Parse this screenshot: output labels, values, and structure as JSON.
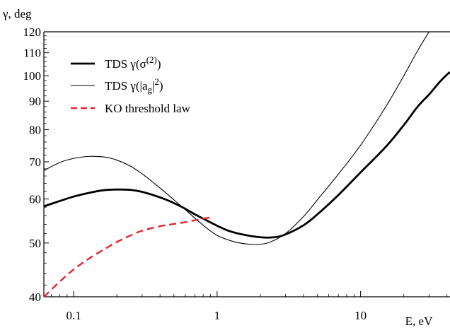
{
  "chart_data": {
    "type": "line",
    "xlabel": "E, eV",
    "ylabel": "γ, deg",
    "xscale": "log",
    "yscale": "log",
    "xlim": [
      0.062,
      42
    ],
    "ylim": [
      40,
      120
    ],
    "x_ticks": [
      {
        "value": 0.1,
        "label": "0.1"
      },
      {
        "value": 1,
        "label": "1"
      },
      {
        "value": 10,
        "label": "10"
      }
    ],
    "y_ticks": [
      {
        "value": 40,
        "label": "40"
      },
      {
        "value": 50,
        "label": "50"
      },
      {
        "value": 60,
        "label": "60"
      },
      {
        "value": 70,
        "label": "70"
      },
      {
        "value": 80,
        "label": "80"
      },
      {
        "value": 90,
        "label": "90"
      },
      {
        "value": 100,
        "label": "100"
      },
      {
        "value": 110,
        "label": "110"
      },
      {
        "value": 120,
        "label": "120"
      }
    ],
    "legend_position": "top-left",
    "series": [
      {
        "name": "TDS γ(σ(2))",
        "legend_main": "TDS γ(σ",
        "legend_sup": "(2)",
        "legend_tail": ")",
        "color": "#000000",
        "style": "thick",
        "x": [
          0.062,
          0.08,
          0.1,
          0.13,
          0.16,
          0.2,
          0.25,
          0.3,
          0.4,
          0.5,
          0.6,
          0.7,
          0.8,
          1.0,
          1.2,
          1.5,
          2.0,
          2.5,
          3.0,
          4.0,
          5.0,
          7.0,
          10,
          15,
          20,
          25,
          30,
          35,
          40,
          42
        ],
        "y": [
          58.2,
          59.5,
          60.6,
          61.6,
          62.2,
          62.4,
          62.3,
          61.8,
          60.4,
          59.0,
          57.6,
          56.3,
          55.3,
          53.7,
          52.6,
          51.8,
          51.2,
          51.2,
          51.8,
          53.8,
          56.3,
          61.0,
          67.0,
          74.5,
          81.5,
          88.0,
          92.5,
          97.0,
          100.5,
          101.5
        ]
      },
      {
        "name": "TDS γ(|ag|2)",
        "legend_main": "TDS γ(|a",
        "legend_sub": "g",
        "legend_mid": "|",
        "legend_sup": "2",
        "legend_tail": ")",
        "color": "#000000",
        "style": "thin",
        "x": [
          0.062,
          0.08,
          0.1,
          0.12,
          0.14,
          0.17,
          0.2,
          0.25,
          0.3,
          0.4,
          0.5,
          0.6,
          0.8,
          1.0,
          1.3,
          1.6,
          1.9,
          2.3,
          3.0,
          4.0,
          5.0,
          7.0,
          10,
          15,
          20,
          25,
          30
        ],
        "y": [
          67.5,
          69.8,
          71.0,
          71.5,
          71.6,
          71.3,
          70.5,
          68.7,
          66.6,
          62.8,
          59.8,
          57.4,
          53.8,
          51.6,
          50.3,
          49.8,
          49.7,
          50.1,
          52.0,
          55.8,
          59.8,
          66.5,
          75.0,
          88.0,
          100.0,
          111.0,
          120.0
        ]
      },
      {
        "name": "KO threshold law",
        "color": "#e8222a",
        "style": "dashed",
        "x": [
          0.062,
          0.08,
          0.1,
          0.13,
          0.17,
          0.2,
          0.25,
          0.3,
          0.4,
          0.5,
          0.6,
          0.8,
          0.95
        ],
        "y": [
          40.0,
          42.6,
          44.8,
          47.0,
          49.0,
          50.2,
          51.6,
          52.6,
          53.6,
          54.1,
          54.5,
          55.3,
          55.7
        ]
      }
    ]
  }
}
